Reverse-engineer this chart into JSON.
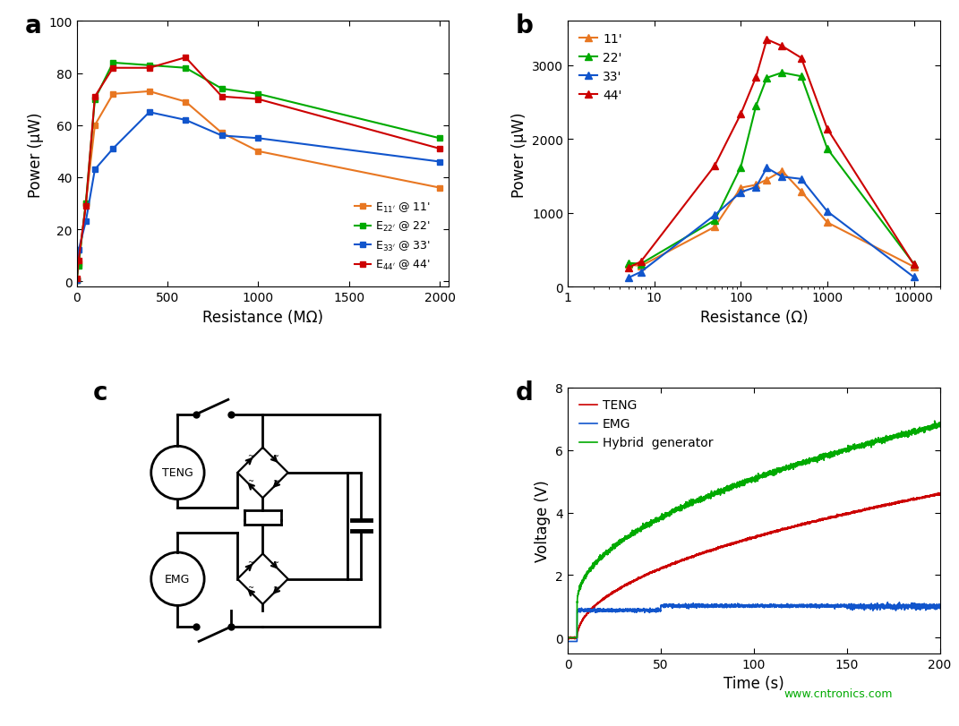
{
  "panel_a": {
    "label": "a",
    "x_label": "Resistance (MΩ)",
    "y_label": "Power (μW)",
    "x_lim": [
      0,
      2050
    ],
    "y_lim": [
      -2,
      100
    ],
    "x_ticks": [
      0,
      500,
      1000,
      1500,
      2000
    ],
    "y_ticks": [
      0,
      20,
      40,
      60,
      80,
      100
    ],
    "series": [
      {
        "label_text": "E$_{11'}$ @ 11'",
        "color": "#E87722",
        "x": [
          0,
          10,
          50,
          100,
          200,
          400,
          600,
          800,
          1000,
          2000
        ],
        "y": [
          0.5,
          7,
          30,
          60,
          72,
          73,
          69,
          57,
          50,
          36
        ]
      },
      {
        "label_text": "E$_{22'}$ @ 22'",
        "color": "#00AA00",
        "x": [
          0,
          10,
          50,
          100,
          200,
          400,
          600,
          800,
          1000,
          2000
        ],
        "y": [
          0.5,
          6,
          30,
          70,
          84,
          83,
          82,
          74,
          72,
          55
        ]
      },
      {
        "label_text": "E$_{33'}$ @ 33'",
        "color": "#1155CC",
        "x": [
          0,
          10,
          50,
          100,
          200,
          400,
          600,
          800,
          1000,
          2000
        ],
        "y": [
          0.3,
          12,
          23,
          43,
          51,
          65,
          62,
          56,
          55,
          46
        ]
      },
      {
        "label_text": "E$_{44'}$ @ 44'",
        "color": "#CC0000",
        "x": [
          0,
          10,
          50,
          100,
          200,
          400,
          600,
          800,
          1000,
          2000
        ],
        "y": [
          1.0,
          8,
          29,
          71,
          82,
          82,
          86,
          71,
          70,
          51
        ]
      }
    ]
  },
  "panel_b": {
    "label": "b",
    "x_label": "Resistance (Ω)",
    "y_label": "Power (μW)",
    "y_lim": [
      0,
      3600
    ],
    "y_ticks": [
      0,
      1000,
      2000,
      3000
    ],
    "series": [
      {
        "label_text": "11'",
        "color": "#E87722",
        "x": [
          5,
          7,
          50,
          100,
          150,
          200,
          300,
          500,
          1000,
          10000
        ],
        "y": [
          300,
          280,
          810,
          1340,
          1380,
          1450,
          1570,
          1290,
          870,
          270
        ]
      },
      {
        "label_text": "22'",
        "color": "#00AA00",
        "x": [
          5,
          7,
          50,
          100,
          150,
          200,
          300,
          500,
          1000,
          10000
        ],
        "y": [
          320,
          310,
          900,
          1620,
          2450,
          2830,
          2900,
          2850,
          1870,
          310
        ]
      },
      {
        "label_text": "33'",
        "color": "#1155CC",
        "x": [
          5,
          7,
          50,
          100,
          150,
          200,
          300,
          500,
          1000,
          10000
        ],
        "y": [
          120,
          200,
          970,
          1280,
          1350,
          1610,
          1490,
          1460,
          1020,
          130
        ]
      },
      {
        "label_text": "44'",
        "color": "#CC0000",
        "x": [
          5,
          7,
          50,
          100,
          150,
          200,
          300,
          500,
          1000,
          10000
        ],
        "y": [
          255,
          340,
          1640,
          2340,
          2840,
          3350,
          3260,
          3100,
          2140,
          300
        ]
      }
    ]
  },
  "panel_d": {
    "label": "d",
    "x_label": "Time (s)",
    "y_label": "Voltage (V)",
    "x_lim": [
      0,
      200
    ],
    "y_lim": [
      -0.5,
      8
    ],
    "x_ticks": [
      0,
      50,
      100,
      150,
      200
    ],
    "y_ticks": [
      0,
      2,
      4,
      6,
      8
    ],
    "watermark": "www.cntronics.com",
    "series": [
      {
        "label_text": "TENG",
        "color": "#CC0000"
      },
      {
        "label_text": "EMG",
        "color": "#1155CC"
      },
      {
        "label_text": "Hybrid  generator",
        "color": "#00AA00"
      }
    ]
  }
}
